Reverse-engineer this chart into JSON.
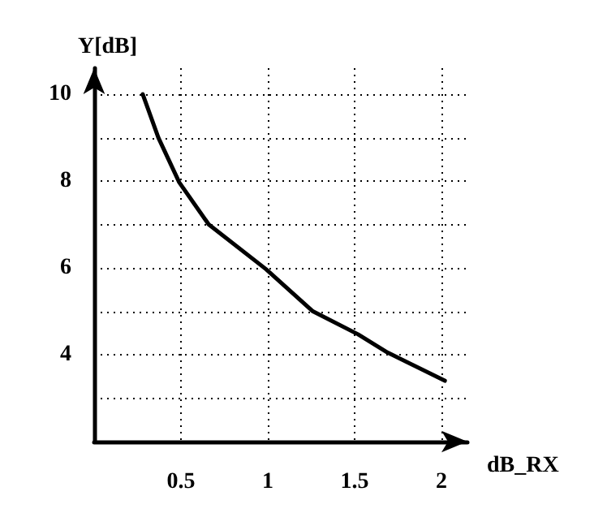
{
  "chart_data": {
    "type": "line",
    "xlabel": "dB_RX",
    "ylabel": "Y[dB]",
    "x": [
      0.28,
      0.37,
      0.49,
      0.66,
      0.99,
      1.26,
      1.52,
      1.69,
      2.02
    ],
    "series": [
      {
        "color": "#000000",
        "values": [
          10,
          9,
          7.97,
          7,
          5.97,
          5,
          4.47,
          4.05,
          3.4
        ]
      }
    ],
    "xlim": [
      0,
      2.15
    ],
    "ylim": [
      2,
      10.6
    ],
    "xticks": [
      0.5,
      1,
      1.5,
      2
    ],
    "yticks": [
      {
        "value": 3,
        "label": null
      },
      4,
      {
        "value": 5,
        "label": null
      },
      6,
      {
        "value": 7,
        "label": null
      },
      8,
      {
        "value": 9,
        "label": null
      },
      10
    ],
    "grid": true,
    "marker": "none",
    "line_style": "solid"
  }
}
